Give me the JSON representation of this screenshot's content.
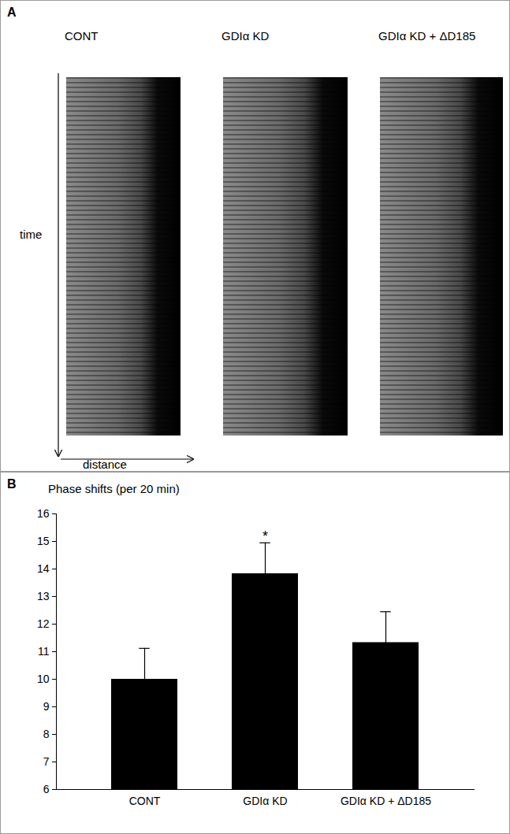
{
  "panel_a": {
    "label": "A",
    "images": [
      "CONT",
      "GDIα KD",
      "GDIα KD + ΔD185"
    ],
    "y_axis_label": "time",
    "x_axis_label": "distance"
  },
  "chart_data": {
    "type": "bar",
    "panel_label": "B",
    "y_axis_label": "Phase shifts (per 20 min)",
    "categories": [
      "CONT",
      "GDIα KD",
      "GDIα KD + ΔD185"
    ],
    "values": [
      10.0,
      13.83,
      11.33
    ],
    "error": [
      1.12,
      1.12,
      1.12
    ],
    "annotations": [
      {
        "category": "GDIα KD",
        "text": "*"
      }
    ],
    "color": "#000000",
    "ylim": [
      6,
      16
    ],
    "yticks": [
      6,
      7,
      8,
      9,
      10,
      11,
      12,
      13,
      14,
      15,
      16
    ],
    "grid": false
  }
}
